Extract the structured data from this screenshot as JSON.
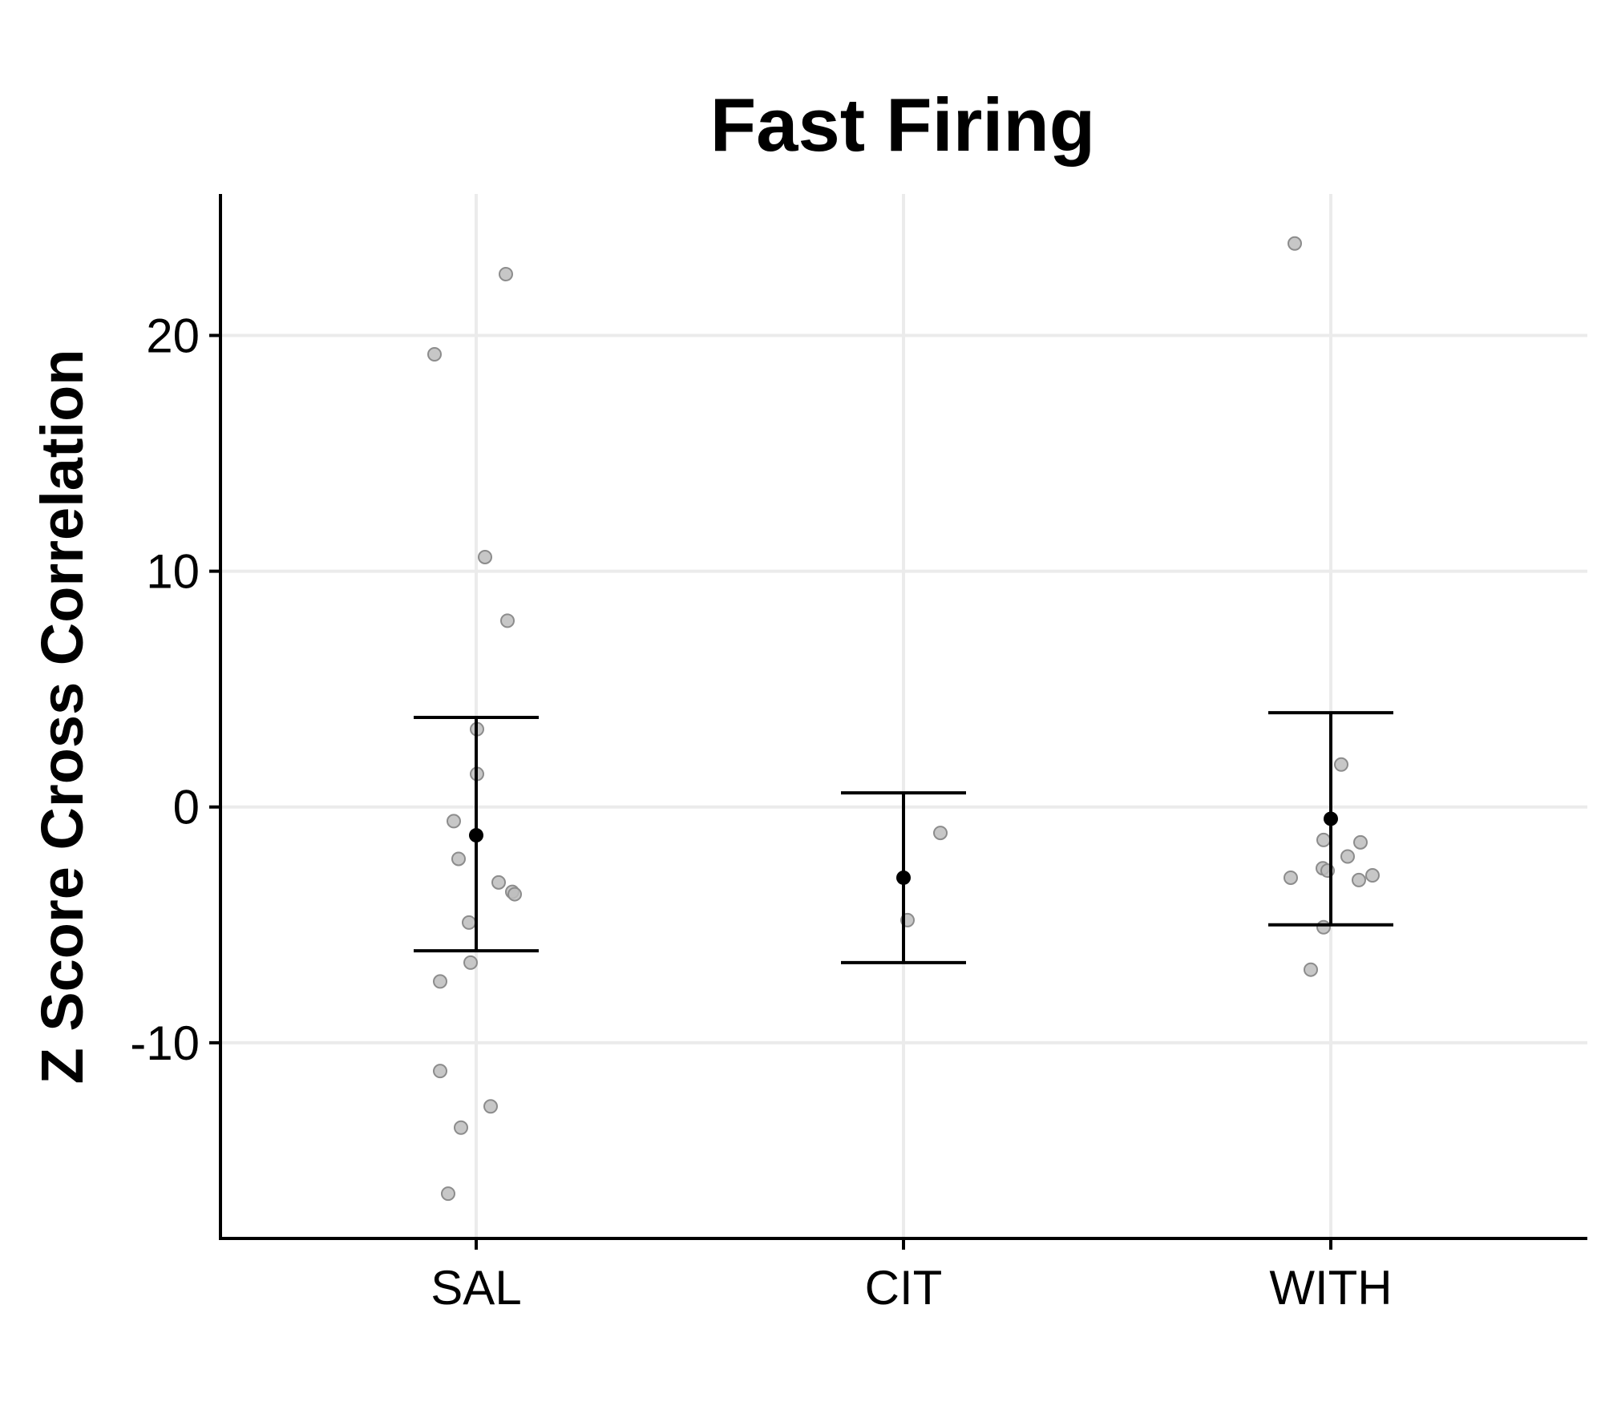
{
  "chart_data": {
    "type": "scatter",
    "title": "Fast Firing",
    "xlabel": "",
    "ylabel": "Z Score Cross Correlation",
    "categories": [
      "SAL",
      "CIT",
      "WITH"
    ],
    "ylim": [
      -18.3,
      26.0
    ],
    "yticks": [
      -10,
      0,
      10,
      20
    ],
    "grid": true,
    "legend": "none",
    "colors": {
      "points": "#bdbdbd",
      "point_stroke": "#8c8c8c",
      "summary": "#000000",
      "grid": "#ebebeb",
      "axis": "#000000"
    },
    "points": [
      {
        "group": "SAL",
        "values": [
          22.6,
          19.2,
          10.6,
          7.9,
          3.3,
          1.4,
          -0.6,
          -2.2,
          -3.2,
          -3.6,
          -3.7,
          -4.9,
          -6.6,
          -7.4,
          -11.2,
          -12.7,
          -13.6,
          -16.4
        ]
      },
      {
        "group": "CIT",
        "values": [
          -1.1,
          -4.8
        ]
      },
      {
        "group": "WITH",
        "values": [
          23.9,
          1.8,
          -1.4,
          -1.5,
          -2.1,
          -2.6,
          -2.7,
          -2.9,
          -3.0,
          -3.1,
          -5.1,
          -6.9
        ]
      }
    ],
    "summary": [
      {
        "group": "SAL",
        "mean": -1.2,
        "lower": -6.1,
        "upper": 3.8
      },
      {
        "group": "CIT",
        "mean": -3.0,
        "lower": -6.6,
        "upper": 0.6
      },
      {
        "group": "WITH",
        "mean": -0.5,
        "lower": -5.0,
        "upper": 4.0
      }
    ]
  }
}
